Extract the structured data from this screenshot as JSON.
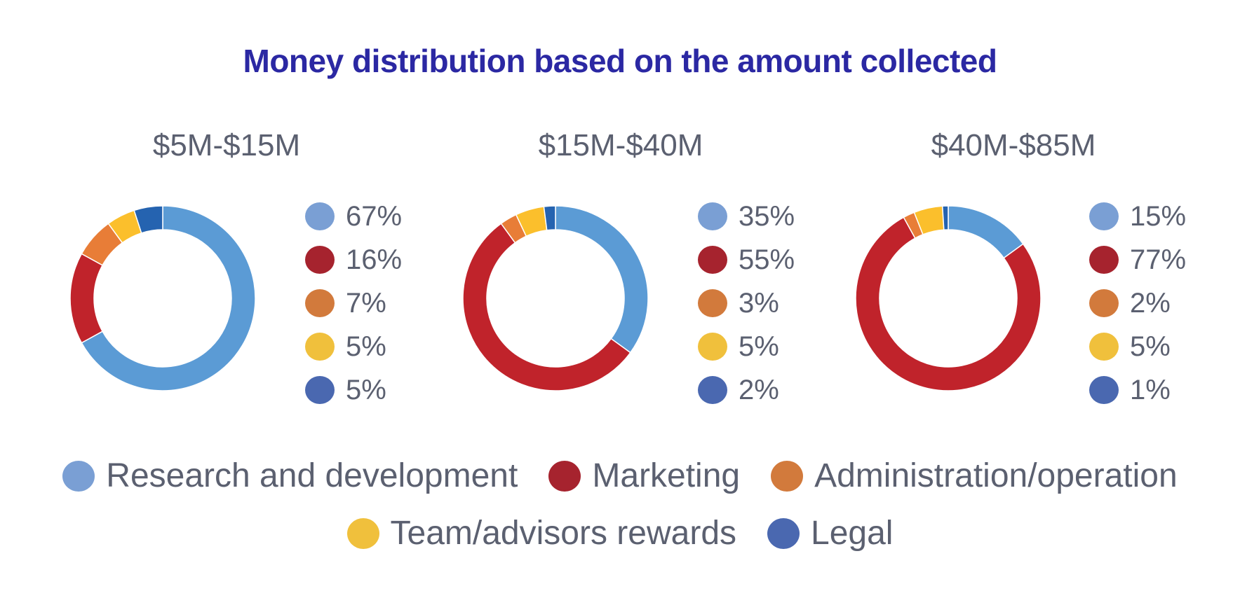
{
  "title": "Money distribution based on the amount collected",
  "categories": [
    "Research and development",
    "Marketing",
    "Administration/operation",
    "Team/advisors rewards",
    "Legal"
  ],
  "colors": {
    "slice": [
      "#5b9bd5",
      "#c0232b",
      "#e87d37",
      "#fbbf2c",
      "#2563b0"
    ],
    "legend_dot": [
      "#7a9fd4",
      "#a6232e",
      "#d27a3c",
      "#f0c03c",
      "#4a68b0"
    ]
  },
  "chart_data": [
    {
      "type": "pie",
      "title": "$5M-$15M",
      "categories": [
        "Research and development",
        "Marketing",
        "Administration/operation",
        "Team/advisors rewards",
        "Legal"
      ],
      "values": [
        67,
        16,
        7,
        5,
        5
      ],
      "labels": [
        "67%",
        "16%",
        "7%",
        "5%",
        "5%"
      ]
    },
    {
      "type": "pie",
      "title": "$15M-$40M",
      "categories": [
        "Research and development",
        "Marketing",
        "Administration/operation",
        "Team/advisors rewards",
        "Legal"
      ],
      "values": [
        35,
        55,
        3,
        5,
        2
      ],
      "labels": [
        "35%",
        "55%",
        "3%",
        "5%",
        "2%"
      ]
    },
    {
      "type": "pie",
      "title": "$40M-$85M",
      "categories": [
        "Research and development",
        "Marketing",
        "Administration/operation",
        "Team/advisors rewards",
        "Legal"
      ],
      "values": [
        15,
        77,
        2,
        5,
        1
      ],
      "labels": [
        "15%",
        "77%",
        "2%",
        "5%",
        "1%"
      ]
    }
  ],
  "legend": {
    "row1": [
      "Research and development",
      "Marketing",
      "Administration/operation"
    ],
    "row2": [
      "Team/advisors rewards",
      "Legal"
    ]
  }
}
